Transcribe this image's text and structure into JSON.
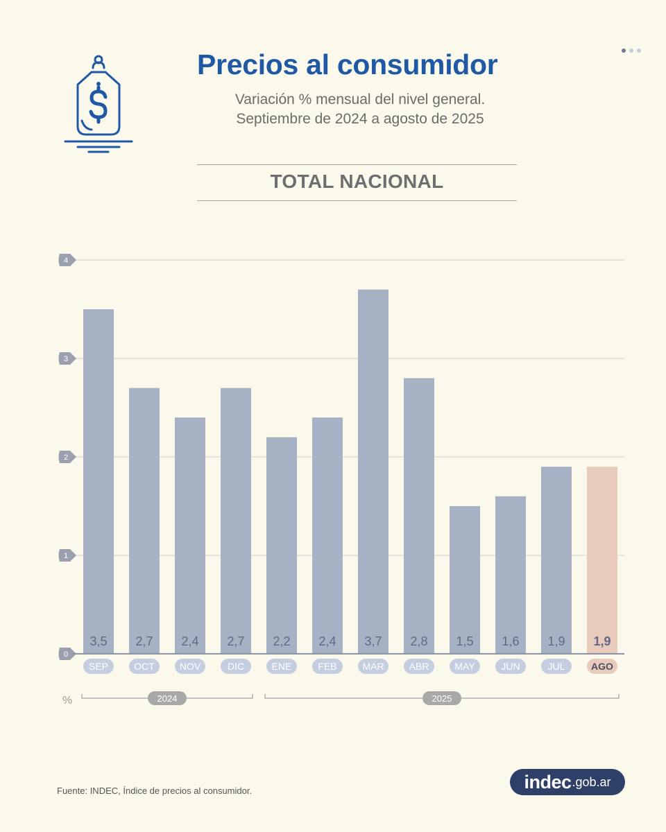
{
  "header": {
    "title": "Precios al consumidor",
    "subtitle_line1": "Variación % mensual del nivel general.",
    "subtitle_line2": "Septiembre de 2024 a agosto de 2025",
    "section_title": "TOTAL NACIONAL",
    "icon": "price-tag-dollar-icon"
  },
  "colors": {
    "title": "#1f58a4",
    "bar": "#a6b1c4",
    "bar_highlight": "#e8cbbb",
    "label": "#5f6987",
    "pill": "#c5cde0",
    "background": "#fbf8ec",
    "logo_bg": "#2e3f68"
  },
  "chart_data": {
    "type": "bar",
    "categories": [
      "SEP",
      "OCT",
      "NOV",
      "DIC",
      "ENE",
      "FEB",
      "MAR",
      "ABR",
      "MAY",
      "JUN",
      "JUL",
      "AGO"
    ],
    "value_labels": [
      "3,5",
      "2,7",
      "2,4",
      "2,7",
      "2,2",
      "2,4",
      "3,7",
      "2,8",
      "1,5",
      "1,6",
      "1,9",
      "1,9"
    ],
    "values": [
      3.5,
      2.7,
      2.4,
      2.7,
      2.2,
      2.4,
      3.7,
      2.8,
      1.5,
      1.6,
      1.9,
      1.9
    ],
    "highlight_index": 11,
    "ylim": [
      0,
      4
    ],
    "yticks": [
      0,
      1,
      2,
      3,
      4
    ],
    "ylabel": "%",
    "grid": true,
    "year_groups": [
      {
        "label": "2024",
        "from": 0,
        "to": 3
      },
      {
        "label": "2025",
        "from": 4,
        "to": 11
      }
    ]
  },
  "footer": {
    "source": "Fuente: INDEC, Índice de precios al consumidor.",
    "logo_main": "indec",
    "logo_domain": ".gob.ar"
  }
}
